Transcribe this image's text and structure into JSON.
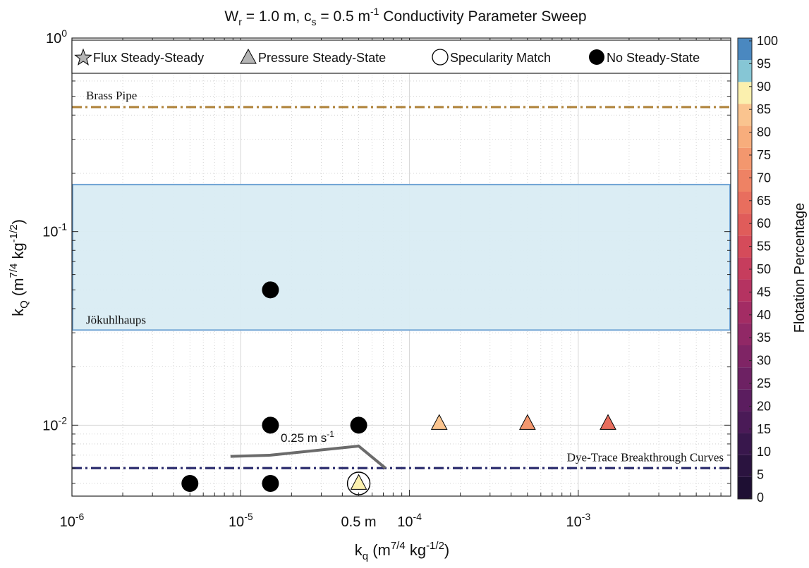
{
  "chart_data": {
    "type": "scatter",
    "title": {
      "base": "W",
      "base_sub": "r",
      "mid": " = 1.0 m, c",
      "mid_sub": "s",
      "mid2": " = 0.5 m",
      "mid2_sup": "-1",
      "tail": " Conductivity Parameter Sweep"
    },
    "xlabel": {
      "base": "k",
      "sub": "q",
      "open": " (m",
      "sup1": "7/4",
      "mid": " kg",
      "sup2": "-1/2",
      "close": ")"
    },
    "ylabel": {
      "base": "k",
      "sub": "Q",
      "open": " (m",
      "sup1": "7/4",
      "mid": " kg",
      "sup2": "-1/2",
      "close": ")"
    },
    "xscale": "log",
    "yscale": "log",
    "xlim": [
      1e-06,
      0.008
    ],
    "ylim": [
      0.0043,
      1
    ],
    "grid": true,
    "x_ticks": [
      {
        "value": 1e-06,
        "base": "10",
        "exp": "-6"
      },
      {
        "value": 1e-05,
        "base": "10",
        "exp": "-5"
      },
      {
        "value": 0.0001,
        "base": "10",
        "exp": "-4"
      },
      {
        "value": 0.001,
        "base": "10",
        "exp": "-3"
      }
    ],
    "x_tick_center_label": {
      "value": 5e-05,
      "text": "0.5 m"
    },
    "y_ticks": [
      {
        "value": 1,
        "base": "10",
        "exp": "0"
      },
      {
        "value": 0.1,
        "base": "10",
        "exp": "-1"
      },
      {
        "value": 0.01,
        "base": "10",
        "exp": "-2"
      }
    ],
    "legend": {
      "placement": "top",
      "entries": [
        {
          "label": "Flux Steady-Steady",
          "marker": "star"
        },
        {
          "label": "Pressure Steady-State",
          "marker": "triangle"
        },
        {
          "label": "Specularity Match",
          "marker": "open-circle"
        },
        {
          "label": "No Steady-State",
          "marker": "filled-circle"
        }
      ]
    },
    "reference_lines": [
      {
        "name": "Brass Pipe",
        "y": 0.44,
        "color": "#b0843c",
        "style": "dashdot"
      },
      {
        "name": "Dye-Trace Breakthrough Curves",
        "y": 0.006,
        "color": "#2c2d6e",
        "style": "dashdot"
      }
    ],
    "band": {
      "name": "Jökuhlhaups",
      "y_min": 0.031,
      "y_max": 0.175,
      "fill": "#d9ecf3",
      "stroke": "#6fa3d4"
    },
    "contour": {
      "label": "0.25 m s",
      "label_sup": "-1",
      "color": "#6b6b6b",
      "points": [
        [
          8.7e-06,
          0.0069
        ],
        [
          1.5e-05,
          0.007
        ],
        [
          5e-05,
          0.0078
        ],
        [
          7.2e-05,
          0.006
        ]
      ]
    },
    "series": [
      {
        "marker": "filled-circle",
        "points": [
          {
            "x": 1.5e-05,
            "y": 0.05
          },
          {
            "x": 1.5e-05,
            "y": 0.01
          },
          {
            "x": 5e-05,
            "y": 0.01
          },
          {
            "x": 5e-06,
            "y": 0.005
          },
          {
            "x": 1.5e-05,
            "y": 0.005
          }
        ]
      },
      {
        "marker": "triangle",
        "points": [
          {
            "x": 0.00015,
            "y": 0.0102,
            "flotation": 89
          },
          {
            "x": 0.0005,
            "y": 0.0102,
            "flotation": 78
          },
          {
            "x": 0.0015,
            "y": 0.0102,
            "flotation": 65
          },
          {
            "x": 5e-05,
            "y": 0.005,
            "flotation": 93
          }
        ]
      },
      {
        "marker": "open-circle",
        "points": [
          {
            "x": 5e-05,
            "y": 0.005
          }
        ]
      }
    ],
    "colorbar": {
      "label": "Flotation Percentage",
      "min": 0,
      "max": 100,
      "ticks": [
        "0",
        "5",
        "10",
        "15",
        "20",
        "25",
        "30",
        "35",
        "40",
        "45",
        "50",
        "55",
        "60",
        "65",
        "70",
        "75",
        "80",
        "85",
        "90",
        "95",
        "100"
      ],
      "segments": [
        {
          "from": 0,
          "to": 5,
          "color": "#1e0f33"
        },
        {
          "from": 5,
          "to": 10,
          "color": "#2a133f"
        },
        {
          "from": 10,
          "to": 15,
          "color": "#38174c"
        },
        {
          "from": 15,
          "to": 20,
          "color": "#4a1a57"
        },
        {
          "from": 20,
          "to": 25,
          "color": "#5b1d5f"
        },
        {
          "from": 25,
          "to": 30,
          "color": "#6d2163"
        },
        {
          "from": 30,
          "to": 35,
          "color": "#7f2465"
        },
        {
          "from": 35,
          "to": 40,
          "color": "#912866"
        },
        {
          "from": 40,
          "to": 45,
          "color": "#a32c64"
        },
        {
          "from": 45,
          "to": 50,
          "color": "#b53361"
        },
        {
          "from": 50,
          "to": 55,
          "color": "#c63d5d"
        },
        {
          "from": 55,
          "to": 60,
          "color": "#d54b5a"
        },
        {
          "from": 60,
          "to": 65,
          "color": "#e05c5a"
        },
        {
          "from": 65,
          "to": 70,
          "color": "#e86e5e"
        },
        {
          "from": 70,
          "to": 75,
          "color": "#ee8264"
        },
        {
          "from": 75,
          "to": 80,
          "color": "#f3976e"
        },
        {
          "from": 80,
          "to": 85,
          "color": "#f7ad7c"
        },
        {
          "from": 85,
          "to": 90,
          "color": "#fac48f"
        },
        {
          "from": 90,
          "to": 95,
          "color": "#fbf0ae"
        },
        {
          "from": 95,
          "to": 100,
          "color": "#86c6d5"
        },
        {
          "from": 100,
          "to": 105,
          "color": "#4a88c0"
        }
      ]
    }
  }
}
